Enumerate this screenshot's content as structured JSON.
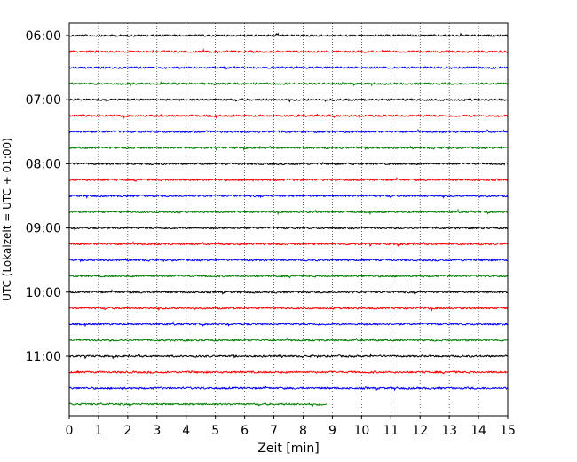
{
  "chart_data": {
    "type": "line",
    "title": "",
    "xlabel": "Zeit  [min]",
    "ylabel": "UTC (Lokalzeit = UTC + 01:00)",
    "xlim": [
      0,
      15
    ],
    "x_ticks": [
      "0",
      "1",
      "2",
      "3",
      "4",
      "5",
      "6",
      "7",
      "8",
      "9",
      "10",
      "11",
      "12",
      "13",
      "14",
      "15"
    ],
    "y_ticks": [
      "06:00",
      "07:00",
      "08:00",
      "09:00",
      "10:00",
      "11:00"
    ],
    "grid_x": true,
    "legend": "none",
    "row_colors": [
      "#000000",
      "#ff0000",
      "#0000ff",
      "#008000"
    ],
    "rows_utc_start": [
      "06:00",
      "06:15",
      "06:30",
      "06:45",
      "07:00",
      "07:15",
      "07:30",
      "07:45",
      "08:00",
      "08:15",
      "08:30",
      "08:45",
      "09:00",
      "09:15",
      "09:30",
      "09:45",
      "10:00",
      "10:15",
      "10:30",
      "10:45",
      "11:00",
      "11:15",
      "11:30",
      "11:45"
    ],
    "last_row_end_min": 8.8
  }
}
